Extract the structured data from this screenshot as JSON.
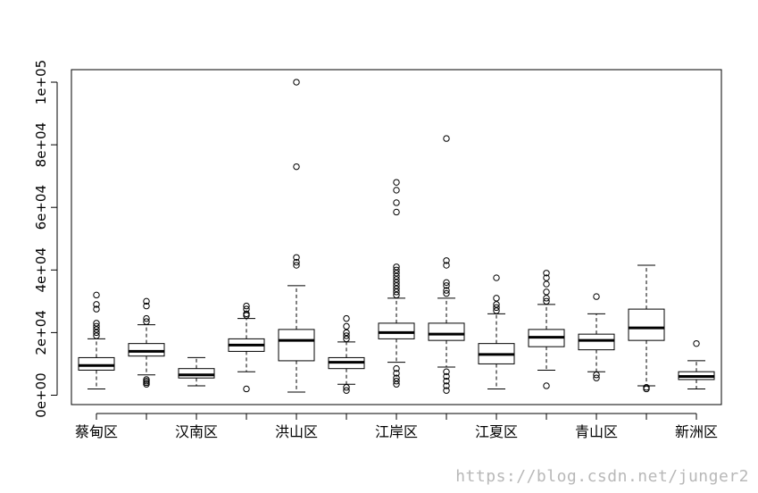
{
  "chart_data": {
    "type": "boxplot",
    "title": "",
    "xlabel": "",
    "ylabel": "",
    "ylim": [
      -3000,
      104000
    ],
    "grid": false,
    "legend": "none",
    "y_ticks": [
      {
        "value": 0,
        "label": "0e+00"
      },
      {
        "value": 20000,
        "label": "2e+04"
      },
      {
        "value": 40000,
        "label": "4e+04"
      },
      {
        "value": 60000,
        "label": "6e+04"
      },
      {
        "value": 80000,
        "label": "8e+04"
      },
      {
        "value": 100000,
        "label": "1e+05"
      }
    ],
    "categories": [
      "蔡甸区",
      "",
      "汉南区",
      "",
      "洪山区",
      "",
      "江岸区",
      "",
      "江夏区",
      "",
      "青山区",
      "",
      "新洲区"
    ],
    "shown_labels": [
      "蔡甸区",
      "汉南区",
      "洪山区",
      "江岸区",
      "江夏区",
      "青山区",
      "新洲区"
    ],
    "boxes": [
      {
        "whisker_low": 2000,
        "q1": 8000,
        "median": 9500,
        "q3": 12000,
        "whisker_high": 18000,
        "outliers": [
          19000,
          20000,
          21000,
          22000,
          23000,
          27500,
          29000,
          32000
        ]
      },
      {
        "whisker_low": 6500,
        "q1": 12500,
        "median": 14000,
        "q3": 16500,
        "whisker_high": 22500,
        "outliers": [
          3500,
          4000,
          4500,
          5000,
          23500,
          24500,
          28500,
          30000
        ]
      },
      {
        "whisker_low": 3000,
        "q1": 5500,
        "median": 6500,
        "q3": 8500,
        "whisker_high": 12000,
        "outliers": []
      },
      {
        "whisker_low": 7500,
        "q1": 14000,
        "median": 16000,
        "q3": 18000,
        "whisker_high": 24500,
        "outliers": [
          2000,
          25500,
          26000,
          27500,
          28500
        ]
      },
      {
        "whisker_low": 1000,
        "q1": 11000,
        "median": 17500,
        "q3": 21000,
        "whisker_high": 35000,
        "outliers": [
          41500,
          42500,
          44000,
          73000,
          100000
        ]
      },
      {
        "whisker_low": 3500,
        "q1": 8500,
        "median": 10500,
        "q3": 12000,
        "whisker_high": 17000,
        "outliers": [
          1500,
          2500,
          18000,
          19000,
          20000,
          22000,
          24500
        ]
      },
      {
        "whisker_low": 10500,
        "q1": 18000,
        "median": 20000,
        "q3": 23000,
        "whisker_high": 31000,
        "outliers": [
          3500,
          4500,
          5500,
          7000,
          8500,
          32000,
          33000,
          34000,
          35000,
          36000,
          37000,
          38000,
          39000,
          40000,
          41000,
          58500,
          61500,
          65500,
          68000
        ]
      },
      {
        "whisker_low": 9000,
        "q1": 17500,
        "median": 19500,
        "q3": 23000,
        "whisker_high": 31000,
        "outliers": [
          1500,
          3000,
          4500,
          6000,
          7500,
          32500,
          33500,
          35000,
          36000,
          41500,
          43000,
          82000
        ]
      },
      {
        "whisker_low": 2000,
        "q1": 10000,
        "median": 13000,
        "q3": 16500,
        "whisker_high": 26000,
        "outliers": [
          27000,
          28000,
          29000,
          31000,
          37500
        ]
      },
      {
        "whisker_low": 8000,
        "q1": 15500,
        "median": 18500,
        "q3": 21000,
        "whisker_high": 29000,
        "outliers": [
          3000,
          30000,
          31000,
          33000,
          35500,
          37500,
          39000
        ]
      },
      {
        "whisker_low": 7500,
        "q1": 14500,
        "median": 17500,
        "q3": 19500,
        "whisker_high": 26000,
        "outliers": [
          5500,
          6500,
          31500
        ]
      },
      {
        "whisker_low": 3000,
        "q1": 17500,
        "median": 21500,
        "q3": 27500,
        "whisker_high": 41500,
        "outliers": [
          2000,
          2500
        ]
      },
      {
        "whisker_low": 2000,
        "q1": 5000,
        "median": 6000,
        "q3": 7500,
        "whisker_high": 11000,
        "outliers": [
          16500
        ]
      }
    ]
  },
  "watermark": "https://blog.csdn.net/junger2"
}
